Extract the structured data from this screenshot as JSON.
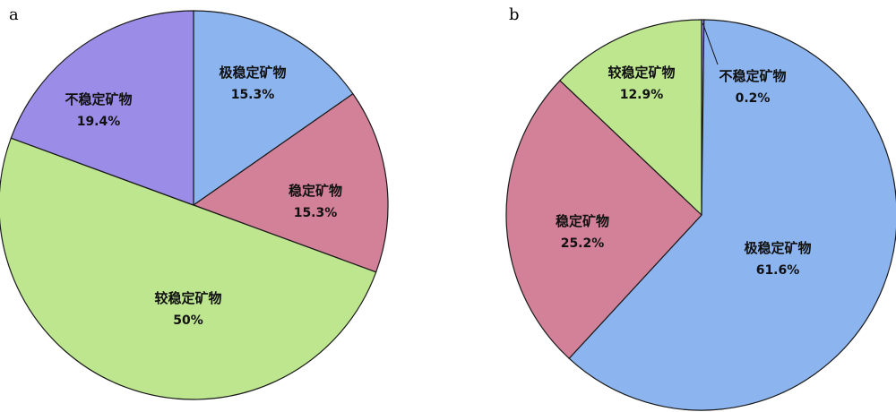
{
  "chart_data": [
    {
      "type": "pie",
      "panel_label": "a",
      "slices": [
        {
          "label": "极稳定矿物",
          "value": 15.3,
          "value_text": "15.3%",
          "color": "#8cb4ee"
        },
        {
          "label": "稳定矿物",
          "value": 15.3,
          "value_text": "15.3%",
          "color": "#d38199"
        },
        {
          "label": "较稳定矿物",
          "value": 50,
          "value_text": "50%",
          "color": "#bde68e"
        },
        {
          "label": "不稳定矿物",
          "value": 19.4,
          "value_text": "19.4%",
          "color": "#9b8ce8"
        }
      ]
    },
    {
      "type": "pie",
      "panel_label": "b",
      "slices": [
        {
          "label": "不稳定矿物",
          "value": 0.2,
          "value_text": "0.2%",
          "color": "#9b8ce8"
        },
        {
          "label": "极稳定矿物",
          "value": 61.6,
          "value_text": "61.6%",
          "color": "#8cb4ee"
        },
        {
          "label": "稳定矿物",
          "value": 25.2,
          "value_text": "25.2%",
          "color": "#d38199"
        },
        {
          "label": "较稳定矿物",
          "value": 12.9,
          "value_text": "12.9%",
          "color": "#bde68e"
        }
      ]
    }
  ]
}
